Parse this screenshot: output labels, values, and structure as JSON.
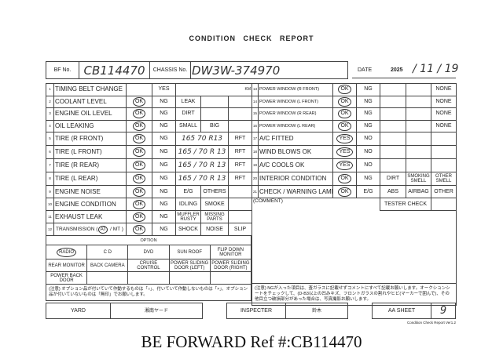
{
  "title": "CONDITION CHECK REPORT",
  "header": {
    "bf_label": "BF No.",
    "bf_value": "CB114470",
    "chassis_label": "CHASSIS No.",
    "chassis_value": "DW3W-374970",
    "date_label": "DATE",
    "date_year": "2025",
    "date_value": "/ 11 / 19"
  },
  "left_rows": [
    {
      "num": "1",
      "label": "TIMING BELT CHANGE",
      "ok": "",
      "ng": "YES",
      "c1": "",
      "c2": "",
      "c3": "KM"
    },
    {
      "num": "2",
      "label": "COOLANT LEVEL",
      "ok": "OK",
      "ng": "NG",
      "c1": "LEAK",
      "c2": "",
      "c3": ""
    },
    {
      "num": "3",
      "label": "ENGINE OIL LEVEL",
      "ok": "OK",
      "ng": "NG",
      "c1": "DIRT",
      "c2": "",
      "c3": ""
    },
    {
      "num": "4",
      "label": "OIL LEAKING",
      "ok": "OK",
      "ng": "NG",
      "c1": "SMALL",
      "c2": "BIG",
      "c3": ""
    },
    {
      "num": "5",
      "label": "TIRE (R FRONT)",
      "ok": "OK",
      "ng": "NG",
      "size": "165 70 R13",
      "c3": "RFT"
    },
    {
      "num": "6",
      "label": "TIRE (L FRONT)",
      "ok": "OK",
      "ng": "NG",
      "size": "165 / 70 R 13",
      "c3": "RFT"
    },
    {
      "num": "7",
      "label": "TIRE (R REAR)",
      "ok": "OK",
      "ng": "NG",
      "size": "165 / 70 R 13",
      "c3": "RFT"
    },
    {
      "num": "8",
      "label": "TIRE (L REAR)",
      "ok": "OK",
      "ng": "NG",
      "size": "165 / 70 R 13",
      "c3": "RFT"
    },
    {
      "num": "9",
      "label": "ENGINE NOISE",
      "ok": "OK",
      "ng": "NG",
      "c1": "E/G",
      "c2": "OTHERS",
      "c3": ""
    },
    {
      "num": "10",
      "label": "ENGINE CONDITION",
      "ok": "OK",
      "ng": "NG",
      "c1": "IDLING",
      "c2": "SMOKE",
      "c3": ""
    },
    {
      "num": "11",
      "label": "EXHAUST LEAK",
      "ok": "OK",
      "ng": "NG",
      "c1": "MUFFLER RUSTY",
      "c2": "MISSING PARTS",
      "c3": ""
    },
    {
      "num": "12",
      "label": "TRANSMISSION (",
      "label_at": "AT",
      "label_rest": " / MT )",
      "ok": "OK",
      "ng": "NG",
      "c1": "SHOCK",
      "c2": "NOISE",
      "c3": "SLIP"
    }
  ],
  "right_rows": [
    {
      "num": "13",
      "label": "POWER WINDOW (R FRONT)",
      "ok": "OK",
      "ng": "NG",
      "d1": "",
      "d2": "",
      "d3": "NONE"
    },
    {
      "num": "14",
      "label": "POWER WINDOW (L FRONT)",
      "ok": "OK",
      "ng": "NG",
      "d1": "",
      "d2": "",
      "d3": "NONE"
    },
    {
      "num": "15",
      "label": "POWER WINDOW (R REAR)",
      "ok": "OK",
      "ng": "NG",
      "d1": "",
      "d2": "",
      "d3": "NONE"
    },
    {
      "num": "16",
      "label": "POWER WINDOW (L REAR)",
      "ok": "OK",
      "ng": "NG",
      "d1": "",
      "d2": "",
      "d3": "NONE"
    },
    {
      "num": "17",
      "label": "A/C FITTED",
      "ok": "YES",
      "ng": "NO",
      "d1": "",
      "d2": "",
      "d3": ""
    },
    {
      "num": "18",
      "label": "WIND BLOWS OK",
      "ok": "YES",
      "ng": "NO",
      "d1": "",
      "d2": "",
      "d3": ""
    },
    {
      "num": "19",
      "label": "A/C COOLS OK",
      "ok": "YES",
      "ng": "NO",
      "d1": "",
      "d2": "",
      "d3": ""
    },
    {
      "num": "20",
      "label": "INTERIOR CONDITION",
      "ok": "OK",
      "ng": "NG",
      "d1": "DIRT",
      "d2": "SMOKING SMELL",
      "d3": "OTHER SMELL"
    },
    {
      "num": "21",
      "label": "CHECK / WARNING LAMP",
      "ok": "OK",
      "ng": "E/G",
      "d1": "ABS",
      "d2": "AIRBAG",
      "d3": "OTHER"
    }
  ],
  "comment_label": "(COMMENT)",
  "tester_check": "TESTER CHECK",
  "option": {
    "header": "OPTION",
    "rows": [
      [
        "RADIO",
        "C D",
        "DVD",
        "SUN ROOF",
        "FLIP DOWN MONITOR"
      ],
      [
        "REAR MONITOR",
        "BACK CAMERA",
        "CRUISE CONTROL",
        "POWER SLIDING DOOR (LEFT)",
        "POWER SLIDING DOOR (RIGHT)"
      ],
      [
        "POWER BACK DOOR",
        "",
        "",
        "",
        ""
      ]
    ]
  },
  "note_left": "(注意) オプション品が付いていて作動するものは「○」、付いていて作動しないものは「×」、オプション品が付いていないものは「無印」でお願いします。",
  "note_right": "(注意) NGが入った項目は、査ガラスに記載せずコメントにすべて記載お願いします。オークションシートをチェックして、(D-B3以上の凹みキズ、フロントガラスの割れやヒビ(マーカーで囲んで)、その他目立つ破損部分があった場合は、写真撮影お願いします。",
  "footer": {
    "yard_label": "YARD",
    "yard_value": "湘南ヤード",
    "inspecter_label": "INSPECTER",
    "inspecter_value": "鈴木",
    "aa_label": "AA SHEET",
    "aa_value": "9",
    "version": "Condition Check Report Ver1.2"
  },
  "watermark": "BE FORWARD Ref #:CB114470"
}
